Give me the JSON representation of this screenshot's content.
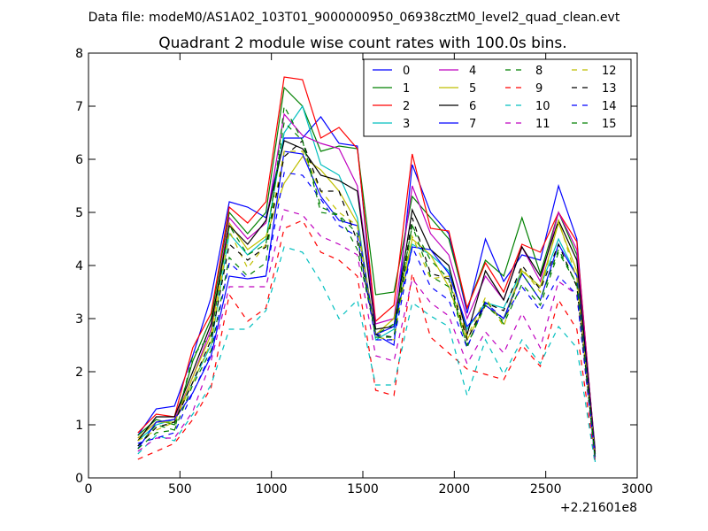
{
  "header": {
    "data_file": "Data file: modeM0/AS1A02_103T01_9000000950_06938cztM0_level2_quad_clean.evt"
  },
  "chart_data": {
    "type": "line",
    "title": "Quadrant 2 module wise count rates with 100.0s bins.",
    "xlabel": "",
    "ylabel": "",
    "x_offset_label": "+2.21601e8",
    "xlim": [
      0,
      3000
    ],
    "ylim": [
      0,
      8
    ],
    "x_ticks": [
      0,
      500,
      1000,
      1500,
      2000,
      2500,
      3000
    ],
    "y_ticks": [
      0,
      1,
      2,
      3,
      4,
      5,
      6,
      7,
      8
    ],
    "grid": false,
    "legend_position": "top-right",
    "legend_columns": 4,
    "x": [
      270,
      370,
      470,
      570,
      670,
      770,
      870,
      970,
      1070,
      1170,
      1270,
      1370,
      1470,
      1570,
      1670,
      1770,
      1870,
      1970,
      2070,
      2170,
      2270,
      2370,
      2470,
      2570,
      2670,
      2770
    ],
    "series": [
      {
        "name": "0",
        "color": "#0000ff",
        "style": "solid",
        "values": [
          0.8,
          1.3,
          1.35,
          2.3,
          3.4,
          5.2,
          5.1,
          4.9,
          6.4,
          6.4,
          6.8,
          6.3,
          6.25,
          2.7,
          2.5,
          5.9,
          5.0,
          4.6,
          3.1,
          4.5,
          3.7,
          4.2,
          4.1,
          5.5,
          4.5,
          0.4
        ]
      },
      {
        "name": "1",
        "color": "#008000",
        "style": "solid",
        "values": [
          0.8,
          1.1,
          1.0,
          2.2,
          3.0,
          5.0,
          4.6,
          5.0,
          7.35,
          7.0,
          6.15,
          6.25,
          6.2,
          3.45,
          3.5,
          5.3,
          4.9,
          4.5,
          3.2,
          4.1,
          3.8,
          4.9,
          3.85,
          5.0,
          4.2,
          0.55
        ]
      },
      {
        "name": "2",
        "color": "#ff0000",
        "style": "solid",
        "values": [
          0.85,
          1.2,
          1.15,
          2.45,
          3.1,
          5.1,
          4.8,
          5.2,
          7.55,
          7.5,
          6.4,
          6.6,
          6.2,
          2.95,
          3.25,
          6.1,
          4.7,
          4.65,
          3.2,
          4.05,
          3.5,
          4.4,
          4.25,
          5.0,
          4.45,
          0.45
        ]
      },
      {
        "name": "3",
        "color": "#00bfbf",
        "style": "solid",
        "values": [
          0.7,
          1.0,
          1.1,
          1.8,
          2.5,
          4.6,
          4.2,
          4.5,
          6.5,
          7.0,
          5.9,
          5.7,
          4.9,
          2.6,
          2.8,
          4.4,
          4.2,
          3.9,
          2.8,
          3.3,
          3.2,
          3.9,
          3.6,
          4.5,
          3.8,
          0.3
        ]
      },
      {
        "name": "4",
        "color": "#bf00bf",
        "style": "solid",
        "values": [
          0.75,
          1.05,
          1.1,
          1.9,
          2.8,
          4.9,
          4.5,
          4.8,
          6.85,
          6.45,
          6.3,
          6.2,
          5.5,
          2.9,
          3.0,
          5.5,
          4.6,
          4.2,
          3.0,
          3.8,
          3.35,
          4.35,
          3.7,
          5.0,
          4.3,
          0.5
        ]
      },
      {
        "name": "5",
        "color": "#bfbf00",
        "style": "solid",
        "values": [
          0.75,
          1.05,
          1.05,
          1.9,
          2.7,
          4.8,
          4.3,
          4.55,
          5.55,
          6.05,
          5.8,
          5.4,
          4.8,
          2.7,
          3.0,
          4.5,
          4.2,
          3.6,
          2.6,
          3.25,
          3.0,
          3.9,
          3.6,
          4.8,
          3.9,
          0.4
        ]
      },
      {
        "name": "6",
        "color": "#000000",
        "style": "solid",
        "values": [
          0.7,
          1.15,
          1.15,
          2.0,
          2.9,
          4.75,
          4.4,
          4.85,
          6.35,
          6.2,
          5.7,
          5.6,
          5.4,
          2.8,
          2.85,
          5.05,
          4.3,
          4.0,
          2.7,
          3.9,
          3.35,
          4.35,
          3.8,
          4.85,
          4.1,
          0.45
        ]
      },
      {
        "name": "7",
        "color": "#0000ff",
        "style": "solid",
        "values": [
          0.55,
          1.05,
          1.1,
          1.6,
          2.3,
          3.8,
          3.75,
          3.8,
          6.15,
          6.1,
          5.3,
          4.85,
          4.75,
          2.7,
          2.85,
          4.35,
          4.3,
          3.85,
          2.85,
          3.25,
          3.0,
          3.85,
          3.35,
          4.4,
          3.8,
          0.4
        ]
      },
      {
        "name": "8",
        "color": "#008000",
        "style": "dashed",
        "values": [
          0.6,
          1.0,
          0.9,
          2.3,
          2.7,
          4.75,
          4.2,
          4.4,
          6.7,
          6.35,
          5.0,
          4.95,
          4.3,
          2.7,
          2.9,
          4.75,
          4.1,
          3.75,
          2.45,
          3.35,
          2.9,
          3.65,
          3.25,
          4.25,
          3.65,
          0.35
        ]
      },
      {
        "name": "9",
        "color": "#ff0000",
        "style": "dashed",
        "values": [
          0.35,
          0.5,
          0.65,
          1.1,
          1.7,
          3.45,
          2.95,
          3.2,
          4.7,
          4.85,
          4.25,
          4.1,
          3.8,
          1.65,
          1.55,
          3.85,
          2.65,
          2.35,
          2.05,
          1.95,
          1.85,
          2.5,
          2.1,
          3.35,
          2.8,
          0.3
        ]
      },
      {
        "name": "10",
        "color": "#00bfbf",
        "style": "dashed",
        "values": [
          0.45,
          0.8,
          0.7,
          1.2,
          1.75,
          2.8,
          2.8,
          3.15,
          4.35,
          4.25,
          3.7,
          3.0,
          3.35,
          1.75,
          1.75,
          3.3,
          3.05,
          2.85,
          1.55,
          2.6,
          1.95,
          2.6,
          2.15,
          2.85,
          2.45,
          0.25
        ]
      },
      {
        "name": "11",
        "color": "#bf00bf",
        "style": "dashed",
        "values": [
          0.5,
          0.75,
          0.75,
          1.25,
          2.2,
          3.6,
          3.6,
          3.6,
          5.05,
          4.95,
          4.55,
          4.4,
          4.2,
          2.3,
          2.2,
          3.75,
          3.3,
          3.05,
          2.15,
          2.75,
          2.35,
          3.1,
          2.45,
          3.7,
          3.45,
          0.3
        ]
      },
      {
        "name": "12",
        "color": "#bfbf00",
        "style": "dashed",
        "values": [
          0.7,
          0.9,
          1.05,
          1.8,
          2.55,
          4.65,
          3.95,
          4.4,
          6.15,
          6.15,
          5.4,
          5.0,
          4.75,
          2.65,
          2.6,
          4.55,
          3.75,
          3.8,
          2.65,
          3.4,
          2.85,
          3.95,
          3.5,
          4.85,
          3.75,
          0.4
        ]
      },
      {
        "name": "13",
        "color": "#000000",
        "style": "dashed",
        "values": [
          0.6,
          0.95,
          1.05,
          1.8,
          2.6,
          4.4,
          4.1,
          4.35,
          6.05,
          6.35,
          5.4,
          5.4,
          4.45,
          2.7,
          2.65,
          4.9,
          3.85,
          3.75,
          2.6,
          3.3,
          3.15,
          4.0,
          3.55,
          4.4,
          3.6,
          0.4
        ]
      },
      {
        "name": "14",
        "color": "#0000ff",
        "style": "dashed",
        "values": [
          0.65,
          0.75,
          0.85,
          1.6,
          2.35,
          4.05,
          3.75,
          3.8,
          5.75,
          5.7,
          5.25,
          4.75,
          4.55,
          2.6,
          2.6,
          4.35,
          3.6,
          3.35,
          2.45,
          3.3,
          3.0,
          3.6,
          3.15,
          3.8,
          3.45,
          0.4
        ]
      },
      {
        "name": "15",
        "color": "#008000",
        "style": "dashed",
        "values": [
          0.55,
          0.85,
          0.9,
          1.75,
          2.4,
          4.15,
          3.8,
          4.05,
          7.0,
          6.35,
          5.1,
          4.95,
          4.6,
          2.65,
          2.65,
          4.75,
          3.8,
          3.6,
          2.5,
          3.25,
          2.95,
          3.85,
          3.35,
          4.3,
          3.65,
          0.35
        ]
      }
    ]
  }
}
